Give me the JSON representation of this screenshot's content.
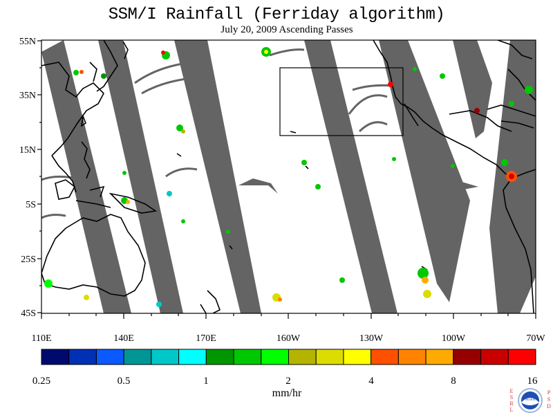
{
  "title": "SSM/I Rainfall (Ferriday algorithm)",
  "subtitle": "July 20, 2009  Ascending Passes",
  "lat_labels": [
    "55N",
    "35N",
    "15N",
    "5S",
    "25S",
    "45S"
  ],
  "lon_labels": [
    "110E",
    "140E",
    "170E",
    "160W",
    "130W",
    "100W",
    "70W"
  ],
  "colorbar": {
    "tick_labels": [
      "0.25",
      "0.5",
      "1",
      "2",
      "4",
      "8",
      "16"
    ],
    "units": "mm/hr",
    "colors": [
      "#000a6e",
      "#0030b4",
      "#0a5aff",
      "#009696",
      "#00c8c8",
      "#00ffff",
      "#009600",
      "#00c800",
      "#00ff00",
      "#b4b400",
      "#dcdc00",
      "#ffff00",
      "#ff5000",
      "#ff8200",
      "#ffaa00",
      "#960000",
      "#c80000",
      "#ff0000"
    ]
  },
  "map": {
    "swath_gap_color": "#646464",
    "land_outline_color": "#000000"
  },
  "logo": {
    "left_text": "ESRL",
    "right_text": "PSD",
    "center_text": "NOAA"
  }
}
